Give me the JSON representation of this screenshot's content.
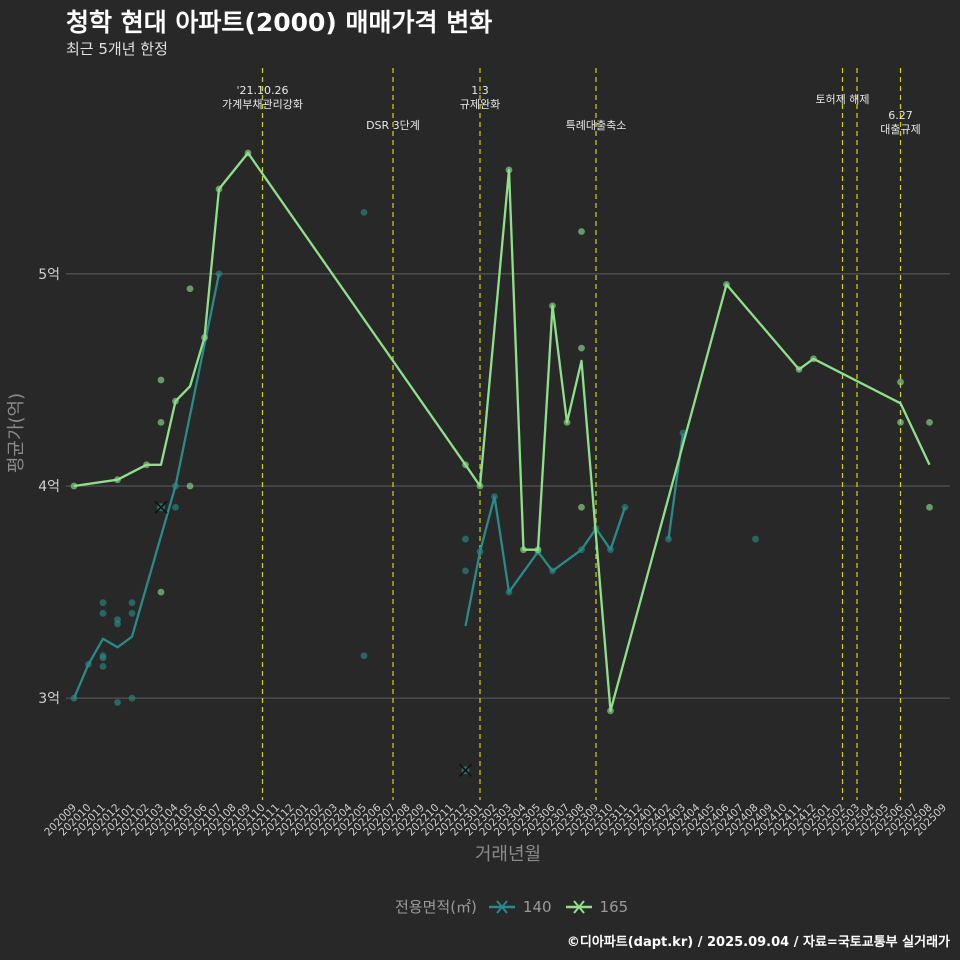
{
  "header": {
    "title": "청학 현대 아파트(2000) 매매가격 변화",
    "subtitle": "최근 5개년 한정"
  },
  "caption": "©디아파트(dapt.kr) / 2025.09.04 / 자료=국토교통부 실거래가",
  "legend": {
    "title": "전용면적(㎡)",
    "items": [
      {
        "label": "140",
        "color": "#2a8a8a"
      },
      {
        "label": "165",
        "color": "#8fe08a"
      }
    ]
  },
  "chart_data": {
    "type": "line",
    "title": "청학 현대 아파트(2000) 매매가격 변화",
    "xlabel": "거래년월",
    "ylabel": "평균가(억)",
    "ylim": [
      2.52,
      5.98
    ],
    "y_ticks": [
      3,
      4,
      5
    ],
    "y_tick_labels": [
      "3억",
      "4억",
      "5억"
    ],
    "x_categories": [
      "202009",
      "202010",
      "202011",
      "202012",
      "202101",
      "202102",
      "202103",
      "202104",
      "202105",
      "202106",
      "202107",
      "202108",
      "202109",
      "202110",
      "202111",
      "202112",
      "202201",
      "202202",
      "202203",
      "202204",
      "202205",
      "202206",
      "202207",
      "202208",
      "202209",
      "202210",
      "202211",
      "202212",
      "202301",
      "202302",
      "202303",
      "202304",
      "202305",
      "202306",
      "202307",
      "202308",
      "202309",
      "202310",
      "202311",
      "202312",
      "202401",
      "202402",
      "202403",
      "202404",
      "202405",
      "202406",
      "202407",
      "202408",
      "202409",
      "202410",
      "202411",
      "202412",
      "202501",
      "202502",
      "202503",
      "202504",
      "202505",
      "202506",
      "202507",
      "202508",
      "202509"
    ],
    "events": [
      {
        "month": "202110",
        "label": "'21.10.26\n가계부채관리강화",
        "label_level": "top"
      },
      {
        "month": "202207",
        "label": "DSR 3단계",
        "label_level": "low"
      },
      {
        "month": "202301",
        "label": "1.3\n규제완화",
        "label_level": "top"
      },
      {
        "month": "202309",
        "label": "특례대출축소",
        "label_level": "low"
      },
      {
        "month": "202502",
        "label": "토허제 해제",
        "label_level": "mid"
      },
      {
        "month": "202503",
        "label": "",
        "label_level": "mid"
      },
      {
        "month": "202506",
        "label": "6.27\n대출규제",
        "label_level": "mid2"
      }
    ],
    "series": [
      {
        "name": "140",
        "color": "#2a8a8a",
        "line": [
          [
            "202009",
            3.0
          ],
          [
            "202010",
            3.16
          ],
          [
            "202011",
            3.28
          ],
          [
            "202012",
            3.24
          ],
          [
            "202101",
            3.29
          ],
          [
            "202104",
            4.0
          ],
          [
            "202107",
            5.0
          ]
        ],
        "line2": [
          [
            "202212",
            3.34
          ],
          [
            "202301",
            3.69
          ],
          [
            "202302",
            3.95
          ],
          [
            "202303",
            3.5
          ],
          [
            "202305",
            3.69
          ],
          [
            "202306",
            3.6
          ],
          [
            "202308",
            3.7
          ],
          [
            "202309",
            3.8
          ],
          [
            "202310",
            3.7
          ],
          [
            "202311",
            3.9
          ]
        ],
        "line3": [
          [
            "202402",
            3.75
          ],
          [
            "202403",
            4.25
          ]
        ],
        "points": [
          [
            "202009",
            3.0
          ],
          [
            "202010",
            3.16
          ],
          [
            "202011",
            3.45
          ],
          [
            "202011",
            3.4
          ],
          [
            "202011",
            3.2
          ],
          [
            "202011",
            3.19
          ],
          [
            "202011",
            3.15
          ],
          [
            "202012",
            3.37
          ],
          [
            "202012",
            3.35
          ],
          [
            "202012",
            2.98
          ],
          [
            "202101",
            3.45
          ],
          [
            "202101",
            3.4
          ],
          [
            "202101",
            3.0
          ],
          [
            "202104",
            4.0
          ],
          [
            "202104",
            3.9
          ],
          [
            "202107",
            5.0
          ],
          [
            "202205",
            5.29
          ],
          [
            "202205",
            3.2
          ],
          [
            "202212",
            3.75
          ],
          [
            "202212",
            3.6
          ],
          [
            "202301",
            3.69
          ],
          [
            "202302",
            3.95
          ],
          [
            "202303",
            3.5
          ],
          [
            "202305",
            3.69
          ],
          [
            "202306",
            3.6
          ],
          [
            "202308",
            3.7
          ],
          [
            "202309",
            3.8
          ],
          [
            "202310",
            3.7
          ],
          [
            "202311",
            3.9
          ],
          [
            "202402",
            3.75
          ],
          [
            "202403",
            4.25
          ],
          [
            "202408",
            3.75
          ]
        ],
        "cancelled": [
          [
            "202103",
            3.9
          ],
          [
            "202212",
            2.66
          ]
        ]
      },
      {
        "name": "165",
        "color": "#8fe08a",
        "line": [
          [
            "202009",
            4.0
          ],
          [
            "202012",
            4.03
          ],
          [
            "202102",
            4.1
          ],
          [
            "202103",
            4.1
          ],
          [
            "202104",
            4.4
          ],
          [
            "202105",
            4.47
          ],
          [
            "202106",
            4.7
          ],
          [
            "202107",
            5.4
          ],
          [
            "202109",
            5.57
          ],
          [
            "202212",
            4.1
          ],
          [
            "202301",
            4.0
          ],
          [
            "202303",
            5.49
          ],
          [
            "202304",
            3.7
          ],
          [
            "202305",
            3.7
          ],
          [
            "202306",
            4.85
          ],
          [
            "202307",
            4.3
          ],
          [
            "202308",
            4.59
          ],
          [
            "202310",
            2.94
          ],
          [
            "202406",
            4.95
          ],
          [
            "202411",
            4.55
          ],
          [
            "202412",
            4.6
          ],
          [
            "202506",
            4.39
          ],
          [
            "202508",
            4.1
          ]
        ],
        "points": [
          [
            "202009",
            4.0
          ],
          [
            "202012",
            4.03
          ],
          [
            "202102",
            4.1
          ],
          [
            "202103",
            4.5
          ],
          [
            "202103",
            4.3
          ],
          [
            "202103",
            3.5
          ],
          [
            "202104",
            4.4
          ],
          [
            "202105",
            4.93
          ],
          [
            "202105",
            4.0
          ],
          [
            "202106",
            4.7
          ],
          [
            "202107",
            5.4
          ],
          [
            "202109",
            5.57
          ],
          [
            "202212",
            4.1
          ],
          [
            "202301",
            4.0
          ],
          [
            "202303",
            5.49
          ],
          [
            "202304",
            3.7
          ],
          [
            "202305",
            3.7
          ],
          [
            "202306",
            4.85
          ],
          [
            "202307",
            4.3
          ],
          [
            "202308",
            5.2
          ],
          [
            "202308",
            4.65
          ],
          [
            "202308",
            3.9
          ],
          [
            "202310",
            2.94
          ],
          [
            "202406",
            4.95
          ],
          [
            "202411",
            4.55
          ],
          [
            "202412",
            4.6
          ],
          [
            "202506",
            4.49
          ],
          [
            "202506",
            4.3
          ],
          [
            "202508",
            4.3
          ],
          [
            "202508",
            3.9
          ]
        ]
      }
    ]
  }
}
